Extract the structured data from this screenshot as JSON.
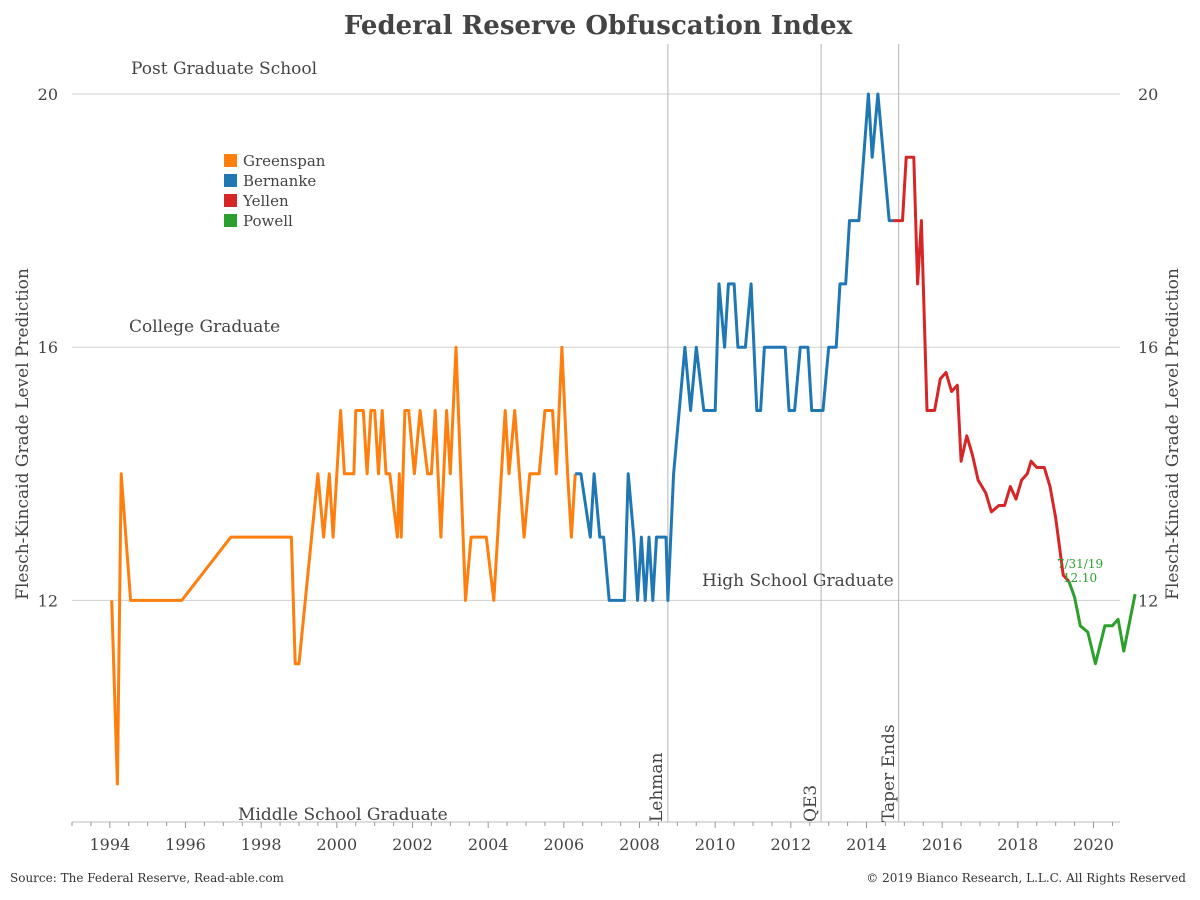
{
  "chart_data": {
    "type": "line",
    "title": "Federal Reserve Obfuscation Index",
    "ylabel_left": "Flesch-Kincaid Grade Level Prediction",
    "ylabel_right": "Flesch-Kincaid Grade Level Prediction",
    "xlabel": "",
    "xlim": [
      1993.0,
      2020.7
    ],
    "ylim": [
      8.5,
      20.6
    ],
    "x_ticks": [
      1994,
      1996,
      1998,
      2000,
      2002,
      2004,
      2006,
      2008,
      2010,
      2012,
      2014,
      2016,
      2018,
      2020
    ],
    "x_tick_labels": [
      "1994",
      "1996",
      "1998",
      "2000",
      "2002",
      "2004",
      "2006",
      "2008",
      "2010",
      "2012",
      "2014",
      "2016",
      "2018",
      "2020"
    ],
    "y_ticks": [
      12,
      16,
      20
    ],
    "y_tick_labels": [
      "12",
      "16",
      "20"
    ],
    "grid": "horizontal",
    "legend_position": "top-left",
    "series": [
      {
        "name": "Greenspan",
        "color": "#ff7f0e",
        "points": [
          [
            1994.05,
            12.0
          ],
          [
            1994.2,
            9.1
          ],
          [
            1994.3,
            14.0
          ],
          [
            1994.55,
            12.0
          ],
          [
            1995.9,
            12.0
          ],
          [
            1997.2,
            13.0
          ],
          [
            1998.8,
            13.0
          ],
          [
            1998.9,
            11.0
          ],
          [
            1999.0,
            11.0
          ],
          [
            1999.5,
            14.0
          ],
          [
            1999.65,
            13.0
          ],
          [
            1999.8,
            14.0
          ],
          [
            1999.9,
            13.0
          ],
          [
            2000.1,
            15.0
          ],
          [
            2000.2,
            14.0
          ],
          [
            2000.45,
            14.0
          ],
          [
            2000.5,
            15.0
          ],
          [
            2000.7,
            15.0
          ],
          [
            2000.8,
            14.0
          ],
          [
            2000.9,
            15.0
          ],
          [
            2001.0,
            15.0
          ],
          [
            2001.1,
            14.0
          ],
          [
            2001.2,
            15.0
          ],
          [
            2001.3,
            14.0
          ],
          [
            2001.4,
            14.0
          ],
          [
            2001.6,
            13.0
          ],
          [
            2001.65,
            14.0
          ],
          [
            2001.7,
            13.0
          ],
          [
            2001.8,
            15.0
          ],
          [
            2001.9,
            15.0
          ],
          [
            2002.05,
            14.0
          ],
          [
            2002.2,
            15.0
          ],
          [
            2002.4,
            14.0
          ],
          [
            2002.5,
            14.0
          ],
          [
            2002.6,
            15.0
          ],
          [
            2002.75,
            13.0
          ],
          [
            2002.9,
            15.0
          ],
          [
            2003.0,
            14.0
          ],
          [
            2003.15,
            16.0
          ],
          [
            2003.4,
            12.0
          ],
          [
            2003.55,
            13.0
          ],
          [
            2003.95,
            13.0
          ],
          [
            2004.15,
            12.0
          ],
          [
            2004.45,
            15.0
          ],
          [
            2004.55,
            14.0
          ],
          [
            2004.7,
            15.0
          ],
          [
            2004.95,
            13.0
          ],
          [
            2005.1,
            14.0
          ],
          [
            2005.35,
            14.0
          ],
          [
            2005.5,
            15.0
          ],
          [
            2005.7,
            15.0
          ],
          [
            2005.8,
            14.0
          ],
          [
            2005.95,
            16.0
          ],
          [
            2006.1,
            14.0
          ],
          [
            2006.2,
            13.0
          ],
          [
            2006.3,
            14.0
          ]
        ]
      },
      {
        "name": "Bernanke",
        "color": "#1f77b4",
        "points": [
          [
            2006.3,
            14.0
          ],
          [
            2006.45,
            14.0
          ],
          [
            2006.7,
            13.0
          ],
          [
            2006.8,
            14.0
          ],
          [
            2006.95,
            13.0
          ],
          [
            2007.05,
            13.0
          ],
          [
            2007.2,
            12.0
          ],
          [
            2007.6,
            12.0
          ],
          [
            2007.7,
            14.0
          ],
          [
            2007.85,
            13.0
          ],
          [
            2007.95,
            12.0
          ],
          [
            2008.05,
            13.0
          ],
          [
            2008.15,
            12.0
          ],
          [
            2008.25,
            13.0
          ],
          [
            2008.35,
            12.0
          ],
          [
            2008.45,
            13.0
          ],
          [
            2008.7,
            13.0
          ],
          [
            2008.75,
            12.0
          ],
          [
            2008.9,
            14.0
          ],
          [
            2009.2,
            16.0
          ],
          [
            2009.35,
            15.0
          ],
          [
            2009.5,
            16.0
          ],
          [
            2009.7,
            15.0
          ],
          [
            2010.0,
            15.0
          ],
          [
            2010.1,
            17.0
          ],
          [
            2010.25,
            16.0
          ],
          [
            2010.35,
            17.0
          ],
          [
            2010.5,
            17.0
          ],
          [
            2010.6,
            16.0
          ],
          [
            2010.8,
            16.0
          ],
          [
            2010.95,
            17.0
          ],
          [
            2011.1,
            15.0
          ],
          [
            2011.2,
            15.0
          ],
          [
            2011.3,
            16.0
          ],
          [
            2011.85,
            16.0
          ],
          [
            2011.95,
            15.0
          ],
          [
            2012.1,
            15.0
          ],
          [
            2012.25,
            16.0
          ],
          [
            2012.45,
            16.0
          ],
          [
            2012.55,
            15.0
          ],
          [
            2012.85,
            15.0
          ],
          [
            2013.0,
            16.0
          ],
          [
            2013.2,
            16.0
          ],
          [
            2013.3,
            17.0
          ],
          [
            2013.45,
            17.0
          ],
          [
            2013.55,
            18.0
          ],
          [
            2013.8,
            18.0
          ],
          [
            2014.05,
            20.0
          ],
          [
            2014.15,
            19.0
          ],
          [
            2014.3,
            20.0
          ],
          [
            2014.6,
            18.0
          ],
          [
            2014.7,
            18.0
          ]
        ]
      },
      {
        "name": "Yellen",
        "color": "#d62728",
        "points": [
          [
            2014.7,
            18.0
          ],
          [
            2014.95,
            18.0
          ],
          [
            2015.05,
            19.0
          ],
          [
            2015.25,
            19.0
          ],
          [
            2015.35,
            17.0
          ],
          [
            2015.45,
            18.0
          ],
          [
            2015.6,
            15.0
          ],
          [
            2015.8,
            15.0
          ],
          [
            2015.95,
            15.5
          ],
          [
            2016.1,
            15.6
          ],
          [
            2016.25,
            15.3
          ],
          [
            2016.4,
            15.4
          ],
          [
            2016.5,
            14.2
          ],
          [
            2016.65,
            14.6
          ],
          [
            2016.8,
            14.3
          ],
          [
            2016.95,
            13.9
          ],
          [
            2017.15,
            13.7
          ],
          [
            2017.3,
            13.4
          ],
          [
            2017.5,
            13.5
          ],
          [
            2017.65,
            13.5
          ],
          [
            2017.8,
            13.8
          ],
          [
            2017.95,
            13.6
          ],
          [
            2018.1,
            13.9
          ],
          [
            2018.25,
            14.0
          ],
          [
            2018.35,
            14.2
          ],
          [
            2018.5,
            14.1
          ],
          [
            2018.7,
            14.1
          ],
          [
            2018.85,
            13.8
          ],
          [
            2019.0,
            13.3
          ],
          [
            2019.2,
            12.4
          ],
          [
            2019.35,
            12.3
          ]
        ]
      },
      {
        "name": "Powell",
        "color": "#2ca02c",
        "points": [
          [
            2019.35,
            12.3
          ],
          [
            2019.5,
            12.05
          ],
          [
            2019.65,
            11.6
          ],
          [
            2019.85,
            11.5
          ],
          [
            2020.05,
            11.0
          ],
          [
            2020.3,
            11.6
          ],
          [
            2020.5,
            11.6
          ],
          [
            2020.65,
            11.7
          ],
          [
            2020.8,
            11.2
          ],
          [
            2021.1,
            12.1
          ]
        ]
      }
    ],
    "vertical_lines": [
      {
        "label": "Lehman",
        "x": 2008.75
      },
      {
        "label": "QE3",
        "x": 2012.8
      },
      {
        "label": "Taper Ends",
        "x": 2014.85
      }
    ],
    "annotations": [
      {
        "label": "Post Graduate School",
        "y": 20
      },
      {
        "label": "College Graduate",
        "y": 16
      },
      {
        "label": "High School Graduate",
        "y": 12
      },
      {
        "label": "Middle School Graduate",
        "y": 8.5
      }
    ],
    "final_value": {
      "date": "7/31/19",
      "value": "12.10"
    }
  },
  "footer": {
    "source": "Source: The Federal Reserve, Read-able.com",
    "copyright": "© 2019 Bianco Research, L.L.C. All Rights Reserved"
  }
}
